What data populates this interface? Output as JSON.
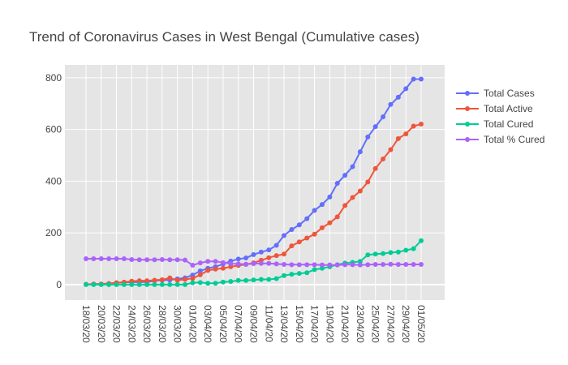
{
  "chart_data": {
    "type": "line",
    "title": "Trend of Coronavirus Cases in West Bengal (Cumulative cases)",
    "xlabel": "",
    "ylabel": "",
    "ylim": [
      -60,
      850
    ],
    "y_ticks": [
      0,
      200,
      400,
      600,
      800
    ],
    "grid": true,
    "legend_position": "top-right",
    "plot_background": "#e5e5e5",
    "x": [
      "18/03/20",
      "19/03/20",
      "20/03/20",
      "21/03/20",
      "22/03/20",
      "23/03/20",
      "24/03/20",
      "25/03/20",
      "26/03/20",
      "27/03/20",
      "28/03/20",
      "29/03/20",
      "30/03/20",
      "31/03/20",
      "01/04/20",
      "02/04/20",
      "03/04/20",
      "04/04/20",
      "05/04/20",
      "06/04/20",
      "07/04/20",
      "08/04/20",
      "09/04/20",
      "10/04/20",
      "11/04/20",
      "12/04/20",
      "13/04/20",
      "14/04/20",
      "15/04/20",
      "16/04/20",
      "17/04/20",
      "18/04/20",
      "19/04/20",
      "20/04/20",
      "21/04/20",
      "22/04/20",
      "23/04/20",
      "24/04/20",
      "25/04/20",
      "26/04/20",
      "27/04/20",
      "28/04/20",
      "29/04/20",
      "30/04/20",
      "01/05/20"
    ],
    "x_tick_labels": [
      "18/03/20",
      "20/03/20",
      "22/03/20",
      "24/03/20",
      "26/03/20",
      "28/03/20",
      "30/03/20",
      "01/04/20",
      "03/04/20",
      "05/04/20",
      "07/04/20",
      "09/04/20",
      "11/04/20",
      "13/04/20",
      "15/04/20",
      "17/04/20",
      "19/04/20",
      "21/04/20",
      "23/04/20",
      "25/04/20",
      "27/04/20",
      "29/04/20",
      "01/05/20"
    ],
    "series": [
      {
        "name": "Total Cases",
        "color": "#636efa",
        "values": [
          1,
          2,
          2,
          4,
          7,
          9,
          9,
          10,
          10,
          15,
          17,
          18,
          22,
          26,
          37,
          53,
          63,
          69,
          80,
          91,
          99,
          103,
          116,
          126,
          134,
          152,
          190,
          213,
          231,
          255,
          287,
          310,
          339,
          392,
          423,
          456,
          514,
          571,
          611,
          649,
          697,
          725,
          758,
          795,
          795
        ]
      },
      {
        "name": "Total Active",
        "color": "#ef553b",
        "values": [
          1,
          2,
          2,
          4,
          7,
          9,
          13,
          15,
          15,
          17,
          19,
          26,
          17,
          20,
          24,
          38,
          55,
          60,
          63,
          69,
          74,
          78,
          84,
          94,
          104,
          112,
          118,
          150,
          165,
          180,
          195,
          220,
          239,
          262,
          306,
          337,
          362,
          397,
          449,
          486,
          522,
          565,
          583,
          613,
          621
        ]
      },
      {
        "name": "Total Cured",
        "color": "#00cc96",
        "values": [
          0,
          0,
          0,
          0,
          0,
          0,
          0,
          0,
          0,
          0,
          0,
          0,
          0,
          0,
          7,
          8,
          5,
          5,
          10,
          12,
          16,
          16,
          18,
          20,
          20,
          23,
          35,
          40,
          43,
          46,
          58,
          63,
          69,
          77,
          83,
          86,
          90,
          115,
          118,
          120,
          124,
          126,
          133,
          139,
          170
        ]
      },
      {
        "name": "Total % Cured",
        "color": "#ab63fa",
        "values": [
          100,
          100,
          100,
          100,
          100,
          100,
          97,
          96,
          96,
          96,
          97,
          96,
          96,
          95,
          75,
          84,
          90,
          90,
          85,
          81,
          80,
          79,
          81,
          82,
          82,
          80,
          78,
          77,
          77,
          77,
          77,
          76,
          76,
          76,
          77,
          77,
          76,
          77,
          78,
          78,
          79,
          78,
          78,
          78,
          78
        ]
      }
    ]
  }
}
